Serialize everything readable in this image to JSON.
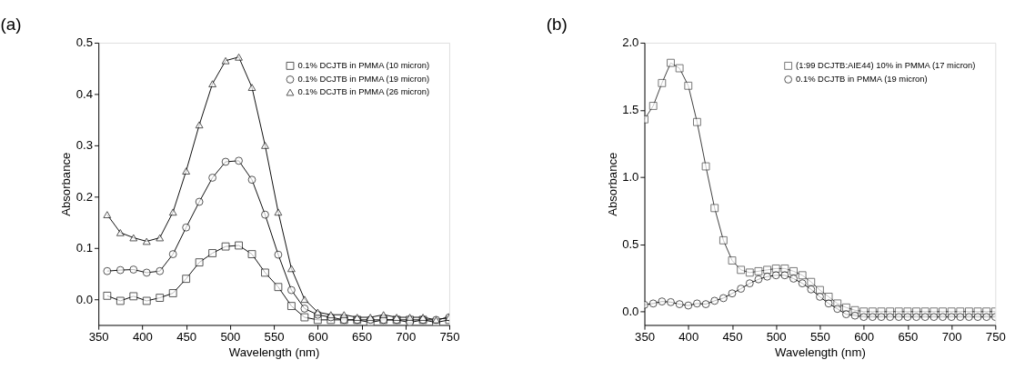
{
  "chart_data": [
    {
      "type": "line",
      "title": "(a)",
      "xlabel": "Wavelength (nm)",
      "ylabel": "Absorbance",
      "xlim": [
        350,
        750
      ],
      "xticks": [
        350,
        400,
        450,
        500,
        550,
        600,
        650,
        700,
        750
      ],
      "ylim": [
        -0.05,
        0.5
      ],
      "yticks": [
        {
          "value": 0,
          "label": "0.0"
        },
        0.1,
        0.2,
        0.3,
        0.4,
        0.5
      ],
      "grid": false,
      "legend": "top right",
      "line_style": "solid",
      "x": [
        360,
        375,
        390,
        405,
        420,
        435,
        450,
        465,
        480,
        495,
        510,
        525,
        540,
        555,
        570,
        585,
        600,
        615,
        630,
        645,
        660,
        675,
        690,
        705,
        720,
        735,
        750
      ],
      "series": [
        {
          "name": "0.1% DCJTB in PMMA (10 micron)",
          "color": "#000000",
          "marker": "square",
          "values": [
            0.007,
            -0.003,
            0.006,
            -0.003,
            0.003,
            0.012,
            0.04,
            0.072,
            0.09,
            0.103,
            0.105,
            0.088,
            0.052,
            0.024,
            -0.013,
            -0.035,
            -0.04,
            -0.04,
            -0.04,
            -0.04,
            -0.045,
            -0.04,
            -0.04,
            -0.04,
            -0.04,
            -0.045,
            -0.04
          ]
        },
        {
          "name": "0.1% DCJTB in PMMA (19 micron)",
          "color": "#000000",
          "marker": "circle",
          "values": [
            0.055,
            0.057,
            0.058,
            0.052,
            0.055,
            0.088,
            0.14,
            0.19,
            0.237,
            0.268,
            0.27,
            0.233,
            0.165,
            0.087,
            0.018,
            -0.018,
            -0.03,
            -0.035,
            -0.04,
            -0.04,
            -0.04,
            -0.04,
            -0.04,
            -0.045,
            -0.04,
            -0.04,
            -0.035
          ]
        },
        {
          "name": "0.1% DCJTB in PMMA (26 micron)",
          "color": "#000000",
          "marker": "triangle",
          "values": [
            0.165,
            0.13,
            0.12,
            0.113,
            0.12,
            0.17,
            0.25,
            0.34,
            0.42,
            0.465,
            0.472,
            0.413,
            0.3,
            0.17,
            0.06,
            0.0,
            -0.025,
            -0.03,
            -0.03,
            -0.035,
            -0.035,
            -0.03,
            -0.035,
            -0.035,
            -0.035,
            -0.04,
            -0.035
          ]
        }
      ]
    },
    {
      "type": "line",
      "title": "(b)",
      "xlabel": "Wavelength (nm)",
      "ylabel": "Absorbance",
      "xlim": [
        350,
        750
      ],
      "xticks": [
        350,
        400,
        450,
        500,
        550,
        600,
        650,
        700,
        750
      ],
      "ylim": [
        -0.1,
        2.0
      ],
      "yticks": [
        {
          "value": 0,
          "label": "0.0"
        },
        0.5,
        {
          "value": 1,
          "label": "1.0"
        },
        1.5,
        {
          "value": 2,
          "label": "2.0"
        }
      ],
      "grid": false,
      "legend": "top right",
      "line_style": "solid",
      "x": [
        350,
        360,
        370,
        380,
        390,
        400,
        410,
        420,
        430,
        440,
        450,
        460,
        470,
        480,
        490,
        500,
        510,
        520,
        530,
        540,
        550,
        560,
        570,
        580,
        590,
        600,
        610,
        620,
        630,
        640,
        650,
        660,
        670,
        680,
        690,
        700,
        710,
        720,
        730,
        740,
        750
      ],
      "series": [
        {
          "name": "(1:99 DCJTB:AIE44) 10% in PMMA (17 micron)",
          "color": "#333333",
          "marker": "square",
          "values": [
            1.43,
            1.53,
            1.7,
            1.85,
            1.81,
            1.68,
            1.41,
            1.08,
            0.77,
            0.53,
            0.38,
            0.31,
            0.29,
            0.3,
            0.31,
            0.32,
            0.32,
            0.3,
            0.27,
            0.22,
            0.16,
            0.11,
            0.06,
            0.03,
            0.01,
            0.0,
            0.0,
            0.0,
            0.0,
            0.0,
            0.0,
            0.0,
            0.0,
            0.0,
            0.0,
            0.0,
            0.0,
            0.0,
            0.0,
            0.0,
            0.0
          ]
        },
        {
          "name": "0.1% DCJTB in PMMA (19 micron)",
          "color": "#000000",
          "marker": "circle",
          "values": [
            0.05,
            0.06,
            0.075,
            0.07,
            0.055,
            0.045,
            0.06,
            0.055,
            0.08,
            0.1,
            0.135,
            0.17,
            0.21,
            0.24,
            0.26,
            0.27,
            0.27,
            0.245,
            0.21,
            0.165,
            0.11,
            0.06,
            0.02,
            -0.02,
            -0.03,
            -0.04,
            -0.04,
            -0.04,
            -0.04,
            -0.04,
            -0.04,
            -0.04,
            -0.04,
            -0.04,
            -0.04,
            -0.04,
            -0.04,
            -0.04,
            -0.04,
            -0.04,
            -0.04
          ]
        }
      ]
    }
  ]
}
